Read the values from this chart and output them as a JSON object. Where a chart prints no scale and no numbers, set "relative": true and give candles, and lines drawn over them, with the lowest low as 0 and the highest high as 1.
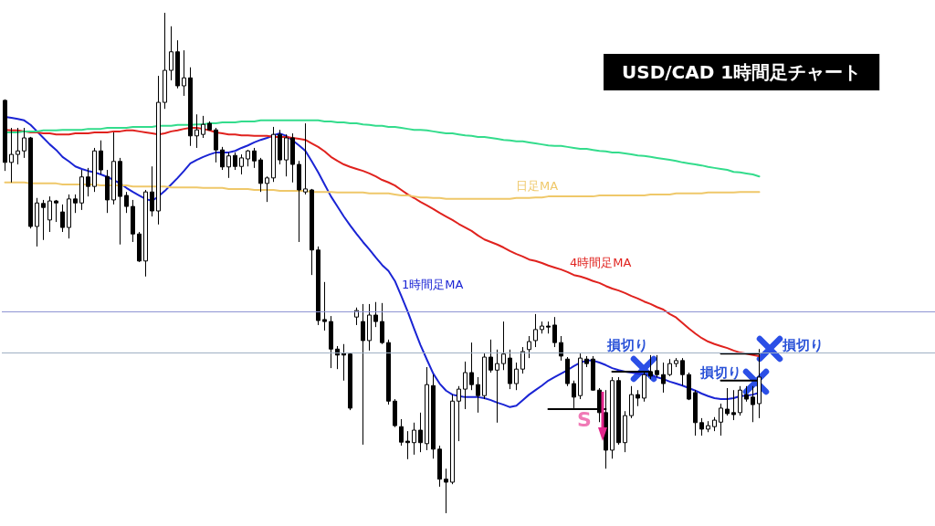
{
  "chart_data": {
    "type": "candlestick",
    "title": "USD/CAD 1時間足チャート",
    "relative": true,
    "categories": [
      null,
      null,
      null,
      null,
      null,
      null,
      null,
      null,
      null,
      null,
      null,
      null,
      null,
      null,
      null,
      null,
      null,
      null,
      null,
      null,
      null,
      null,
      null,
      null,
      null,
      null,
      null,
      null,
      null,
      null,
      null,
      null,
      null,
      null,
      null,
      null,
      null,
      null,
      null,
      null,
      null,
      null,
      null,
      null,
      null,
      null,
      null,
      null,
      null,
      null,
      null,
      null,
      null,
      null,
      null,
      null,
      null,
      null,
      null,
      null,
      null,
      null,
      null,
      null,
      null,
      null,
      null,
      null,
      null,
      null,
      null,
      null,
      null,
      null,
      null,
      null,
      null,
      null,
      null,
      null,
      null,
      null,
      null,
      null,
      null,
      null,
      null,
      null,
      null,
      null,
      null,
      null,
      null,
      null,
      null,
      null,
      null,
      null,
      null,
      null,
      null,
      null,
      null,
      null,
      null,
      null,
      null,
      null,
      null,
      null,
      null,
      null,
      null,
      null,
      null,
      null,
      null,
      null,
      null
    ],
    "ohlc": [
      [
        0.825,
        0.827,
        0.684,
        0.701
      ],
      [
        0.701,
        0.77,
        0.661,
        0.717
      ],
      [
        0.717,
        0.77,
        0.697,
        0.724
      ],
      [
        0.724,
        0.77,
        0.71,
        0.75
      ],
      [
        0.75,
        0.752,
        0.569,
        0.573
      ],
      [
        0.573,
        0.63,
        0.533,
        0.62
      ],
      [
        0.619,
        0.626,
        0.546,
        0.611
      ],
      [
        0.586,
        0.633,
        0.562,
        0.624
      ],
      [
        0.624,
        0.626,
        0.582,
        0.62
      ],
      [
        0.602,
        0.617,
        0.562,
        0.571
      ],
      [
        0.571,
        0.637,
        0.549,
        0.628
      ],
      [
        0.628,
        0.637,
        0.6,
        0.62
      ],
      [
        0.62,
        0.686,
        0.606,
        0.672
      ],
      [
        0.672,
        0.69,
        0.633,
        0.653
      ],
      [
        0.653,
        0.73,
        0.642,
        0.724
      ],
      [
        0.724,
        0.745,
        0.677,
        0.686
      ],
      [
        0.673,
        0.686,
        0.6,
        0.626
      ],
      [
        0.626,
        0.761,
        0.617,
        0.703
      ],
      [
        0.703,
        0.71,
        0.537,
        0.633
      ],
      [
        0.635,
        0.642,
        0.6,
        0.613
      ],
      [
        0.613,
        0.626,
        0.542,
        0.558
      ],
      [
        0.558,
        0.562,
        0.502,
        0.504
      ],
      [
        0.504,
        0.646,
        0.473,
        0.642
      ],
      [
        0.642,
        0.693,
        0.593,
        0.604
      ],
      [
        0.604,
        0.874,
        0.577,
        0.821
      ],
      [
        0.821,
        1,
        0.808,
        0.885
      ],
      [
        0.885,
        0.973,
        0.865,
        0.922
      ],
      [
        0.922,
        0.945,
        0.849,
        0.854
      ],
      [
        0.854,
        0.925,
        0.834,
        0.87
      ],
      [
        0.87,
        0.891,
        0.734,
        0.754
      ],
      [
        0.754,
        0.797,
        0.73,
        0.766
      ],
      [
        0.757,
        0.794,
        0.75,
        0.777
      ],
      [
        0.779,
        0.783,
        0.765,
        0.766
      ],
      [
        0.766,
        0.77,
        0.701,
        0.726
      ],
      [
        0.726,
        0.732,
        0.686,
        0.692
      ],
      [
        0.692,
        0.721,
        0.67,
        0.714
      ],
      [
        0.715,
        0.721,
        0.686,
        0.693
      ],
      [
        0.693,
        0.717,
        0.677,
        0.71
      ],
      [
        0.708,
        0.726,
        0.693,
        0.724
      ],
      [
        0.724,
        0.73,
        0.69,
        0.704
      ],
      [
        0.706,
        0.71,
        0.642,
        0.659
      ],
      [
        0.659,
        0.673,
        0.622,
        0.67
      ],
      [
        0.67,
        0.772,
        0.662,
        0.757
      ],
      [
        0.757,
        0.766,
        0.697,
        0.706
      ],
      [
        0.706,
        0.757,
        0.673,
        0.75
      ],
      [
        0.75,
        0.759,
        0.661,
        0.697
      ],
      [
        0.697,
        0.704,
        0.542,
        0.646
      ],
      [
        0.642,
        0.779,
        0.637,
        0.648
      ],
      [
        0.646,
        0.648,
        0.476,
        0.526
      ],
      [
        0.526,
        0.533,
        0.376,
        0.385
      ],
      [
        0.387,
        0.462,
        0.365,
        0.383
      ],
      [
        0.383,
        0.394,
        0.29,
        0.328
      ],
      [
        0.328,
        0.334,
        0.288,
        0.316
      ],
      [
        0.319,
        0.338,
        0.265,
        0.316
      ],
      [
        0.318,
        0.321,
        0.206,
        0.21
      ],
      [
        0.392,
        0.411,
        0.376,
        0.405
      ],
      [
        0.383,
        0.418,
        0.137,
        0.345
      ],
      [
        0.345,
        0.418,
        0.325,
        0.396
      ],
      [
        0.396,
        0.422,
        0.372,
        0.383
      ],
      [
        0.383,
        0.42,
        0.338,
        0.341
      ],
      [
        0.341,
        0.347,
        0.217,
        0.224
      ],
      [
        0.224,
        0.228,
        0.172,
        0.175
      ],
      [
        0.173,
        0.188,
        0.135,
        0.142
      ],
      [
        0.144,
        0.164,
        0.108,
        0.141
      ],
      [
        0.141,
        0.181,
        0.117,
        0.166
      ],
      [
        0.166,
        0.201,
        0.122,
        0.141
      ],
      [
        0.139,
        0.292,
        0.126,
        0.257
      ],
      [
        0.255,
        0.277,
        0.109,
        0.128
      ],
      [
        0.128,
        0.135,
        0.053,
        0.068
      ],
      [
        0.068,
        0.089,
        0,
        0.062
      ],
      [
        0.062,
        0.237,
        0.058,
        0.224
      ],
      [
        0.224,
        0.254,
        0.144,
        0.248
      ],
      [
        0.248,
        0.303,
        0.208,
        0.281
      ],
      [
        0.281,
        0.341,
        0.246,
        0.257
      ],
      [
        0.257,
        0.272,
        0.201,
        0.235
      ],
      [
        0.235,
        0.319,
        0.228,
        0.312
      ],
      [
        0.312,
        0.347,
        0.281,
        0.286
      ],
      [
        0.286,
        0.327,
        0.181,
        0.299
      ],
      [
        0.299,
        0.383,
        0.286,
        0.318
      ],
      [
        0.31,
        0.327,
        0.248,
        0.259
      ],
      [
        0.259,
        0.301,
        0.246,
        0.288
      ],
      [
        0.288,
        0.332,
        0.279,
        0.323
      ],
      [
        0.327,
        0.354,
        0.31,
        0.343
      ],
      [
        0.345,
        0.398,
        0.332,
        0.367
      ],
      [
        0.367,
        0.383,
        0.359,
        0.374
      ],
      [
        0.374,
        0.383,
        0.359,
        0.372
      ],
      [
        0.376,
        0.392,
        0.332,
        0.341
      ],
      [
        0.341,
        0.354,
        0.305,
        0.314
      ],
      [
        0.308,
        0.312,
        0.254,
        0.259
      ],
      [
        0.259,
        0.265,
        0.21,
        0.232
      ],
      [
        0.235,
        0.319,
        0.228,
        0.31
      ],
      [
        0.308,
        0.314,
        0.292,
        0.299
      ],
      [
        0.308,
        0.314,
        0.245,
        0.246
      ],
      [
        0.246,
        0.25,
        0.182,
        0.201
      ],
      [
        0.201,
        0.246,
        0.089,
        0.126
      ],
      [
        0.126,
        0.272,
        0.109,
        0.265
      ],
      [
        0.265,
        0.272,
        0.137,
        0.141
      ],
      [
        0.141,
        0.204,
        0.122,
        0.195
      ],
      [
        0.195,
        0.254,
        0.19,
        0.237
      ],
      [
        0.237,
        0.246,
        0.214,
        0.23
      ],
      [
        0.23,
        0.283,
        0.223,
        0.277
      ],
      [
        0.283,
        0.316,
        0.268,
        0.274
      ],
      [
        0.285,
        0.316,
        0.272,
        0.277
      ],
      [
        0.277,
        0.301,
        0.241,
        0.259
      ],
      [
        0.277,
        0.308,
        0.274,
        0.299
      ],
      [
        0.299,
        0.31,
        0.292,
        0.305
      ],
      [
        0.305,
        0.31,
        0.255,
        0.277
      ],
      [
        0.277,
        0.281,
        0.226,
        0.228
      ],
      [
        0.241,
        0.246,
        0.155,
        0.181
      ],
      [
        0.181,
        0.19,
        0.155,
        0.168
      ],
      [
        0.168,
        0.184,
        0.162,
        0.175
      ],
      [
        0.173,
        0.192,
        0.164,
        0.186
      ],
      [
        0.182,
        0.219,
        0.155,
        0.21
      ],
      [
        0.208,
        0.25,
        0.195,
        0.199
      ],
      [
        0.201,
        0.246,
        0.186,
        0.197
      ],
      [
        0.201,
        0.254,
        0.195,
        0.246
      ],
      [
        0.237,
        0.254,
        0.223,
        0.228
      ],
      [
        0.232,
        0.254,
        0.182,
        0.217
      ],
      [
        0.219,
        0.328,
        0.19,
        0.272
      ]
    ],
    "series": [
      {
        "type": "line",
        "name": "1時間足MA",
        "color": "#1a24d4",
        "values": [
          0.792,
          0.79,
          0.788,
          0.785,
          0.776,
          0.763,
          0.75,
          0.737,
          0.726,
          0.712,
          0.703,
          0.693,
          0.688,
          0.684,
          0.681,
          0.677,
          0.672,
          0.666,
          0.659,
          0.65,
          0.642,
          0.635,
          0.628,
          0.624,
          0.633,
          0.644,
          0.657,
          0.67,
          0.684,
          0.699,
          0.706,
          0.712,
          0.717,
          0.721,
          0.721,
          0.721,
          0.724,
          0.73,
          0.735,
          0.741,
          0.746,
          0.75,
          0.755,
          0.759,
          0.754,
          0.745,
          0.735,
          0.724,
          0.703,
          0.681,
          0.657,
          0.633,
          0.613,
          0.593,
          0.575,
          0.558,
          0.542,
          0.527,
          0.511,
          0.496,
          0.484,
          0.464,
          0.434,
          0.403,
          0.369,
          0.336,
          0.307,
          0.279,
          0.259,
          0.245,
          0.237,
          0.234,
          0.232,
          0.232,
          0.232,
          0.23,
          0.226,
          0.221,
          0.217,
          0.212,
          0.215,
          0.226,
          0.237,
          0.246,
          0.255,
          0.265,
          0.272,
          0.279,
          0.286,
          0.294,
          0.301,
          0.305,
          0.305,
          0.301,
          0.296,
          0.29,
          0.286,
          0.283,
          0.281,
          0.279,
          0.277,
          0.276,
          0.272,
          0.268,
          0.263,
          0.259,
          0.255,
          0.25,
          0.245,
          0.239,
          0.234,
          0.23,
          0.228,
          0.228,
          0.23,
          0.234,
          0.235,
          0.237,
          0.241
        ]
      },
      {
        "type": "line",
        "name": "4時間足MA",
        "color": "#e0221e",
        "values": [
          0.766,
          0.765,
          0.765,
          0.763,
          0.761,
          0.761,
          0.759,
          0.759,
          0.757,
          0.757,
          0.757,
          0.759,
          0.759,
          0.759,
          0.761,
          0.761,
          0.761,
          0.763,
          0.763,
          0.765,
          0.765,
          0.763,
          0.761,
          0.759,
          0.757,
          0.759,
          0.763,
          0.765,
          0.768,
          0.77,
          0.77,
          0.768,
          0.765,
          0.761,
          0.759,
          0.757,
          0.757,
          0.755,
          0.755,
          0.754,
          0.754,
          0.754,
          0.752,
          0.752,
          0.752,
          0.75,
          0.748,
          0.746,
          0.739,
          0.732,
          0.723,
          0.712,
          0.704,
          0.697,
          0.692,
          0.688,
          0.684,
          0.679,
          0.673,
          0.666,
          0.661,
          0.655,
          0.646,
          0.637,
          0.63,
          0.622,
          0.615,
          0.608,
          0.6,
          0.593,
          0.586,
          0.578,
          0.571,
          0.564,
          0.555,
          0.547,
          0.542,
          0.537,
          0.531,
          0.524,
          0.518,
          0.513,
          0.507,
          0.504,
          0.5,
          0.495,
          0.491,
          0.487,
          0.482,
          0.476,
          0.473,
          0.469,
          0.464,
          0.46,
          0.454,
          0.449,
          0.445,
          0.44,
          0.434,
          0.429,
          0.423,
          0.418,
          0.412,
          0.407,
          0.398,
          0.391,
          0.38,
          0.369,
          0.359,
          0.35,
          0.343,
          0.338,
          0.334,
          0.33,
          0.325,
          0.321,
          0.319,
          0.316,
          0.314
        ]
      },
      {
        "type": "line",
        "color": "#33dc8c",
        "values": [
          0.761,
          0.761,
          0.761,
          0.763,
          0.763,
          0.763,
          0.765,
          0.765,
          0.765,
          0.766,
          0.766,
          0.766,
          0.766,
          0.768,
          0.768,
          0.768,
          0.77,
          0.77,
          0.77,
          0.77,
          0.772,
          0.772,
          0.772,
          0.772,
          0.774,
          0.774,
          0.774,
          0.776,
          0.776,
          0.776,
          0.777,
          0.777,
          0.779,
          0.779,
          0.781,
          0.781,
          0.781,
          0.783,
          0.783,
          0.783,
          0.785,
          0.785,
          0.785,
          0.785,
          0.785,
          0.785,
          0.785,
          0.785,
          0.785,
          0.785,
          0.783,
          0.783,
          0.781,
          0.781,
          0.779,
          0.779,
          0.777,
          0.776,
          0.774,
          0.774,
          0.772,
          0.772,
          0.77,
          0.768,
          0.766,
          0.766,
          0.765,
          0.763,
          0.761,
          0.759,
          0.759,
          0.757,
          0.755,
          0.754,
          0.752,
          0.752,
          0.75,
          0.748,
          0.746,
          0.745,
          0.743,
          0.743,
          0.741,
          0.739,
          0.737,
          0.735,
          0.734,
          0.734,
          0.732,
          0.73,
          0.728,
          0.728,
          0.726,
          0.724,
          0.723,
          0.721,
          0.721,
          0.719,
          0.717,
          0.715,
          0.714,
          0.712,
          0.71,
          0.708,
          0.706,
          0.704,
          0.701,
          0.699,
          0.697,
          0.695,
          0.692,
          0.69,
          0.688,
          0.686,
          0.682,
          0.681,
          0.679,
          0.677,
          0.673
        ]
      },
      {
        "type": "line",
        "name": "日足MA",
        "color": "#efc86a",
        "values": [
          0.661,
          0.661,
          0.661,
          0.661,
          0.659,
          0.659,
          0.659,
          0.659,
          0.659,
          0.657,
          0.657,
          0.657,
          0.657,
          0.657,
          0.657,
          0.655,
          0.655,
          0.655,
          0.655,
          0.655,
          0.653,
          0.653,
          0.653,
          0.653,
          0.653,
          0.653,
          0.651,
          0.651,
          0.651,
          0.651,
          0.651,
          0.65,
          0.65,
          0.65,
          0.65,
          0.648,
          0.648,
          0.648,
          0.648,
          0.646,
          0.646,
          0.646,
          0.646,
          0.644,
          0.644,
          0.644,
          0.644,
          0.644,
          0.642,
          0.642,
          0.642,
          0.642,
          0.641,
          0.641,
          0.641,
          0.641,
          0.641,
          0.639,
          0.639,
          0.639,
          0.639,
          0.637,
          0.635,
          0.635,
          0.633,
          0.631,
          0.631,
          0.63,
          0.63,
          0.628,
          0.628,
          0.628,
          0.628,
          0.628,
          0.628,
          0.628,
          0.628,
          0.628,
          0.628,
          0.628,
          0.63,
          0.63,
          0.63,
          0.631,
          0.631,
          0.633,
          0.633,
          0.633,
          0.633,
          0.633,
          0.633,
          0.633,
          0.633,
          0.635,
          0.635,
          0.635,
          0.635,
          0.635,
          0.635,
          0.635,
          0.635,
          0.637,
          0.637,
          0.637,
          0.637,
          0.639,
          0.639,
          0.639,
          0.639,
          0.639,
          0.641,
          0.641,
          0.641,
          0.641,
          0.641,
          0.642,
          0.642,
          0.642,
          0.642
        ]
      },
      {
        "type": "line",
        "color": "#000000",
        "values": [
          null,
          null,
          null,
          null,
          null,
          null,
          null,
          null,
          null,
          null,
          null,
          null,
          null,
          null,
          null,
          null,
          null,
          null,
          null,
          null,
          null,
          null,
          null,
          null,
          null,
          null,
          null,
          null,
          null,
          null,
          null,
          null,
          null,
          null,
          null,
          null,
          null,
          null,
          null,
          null,
          null,
          null,
          null,
          null,
          null,
          null,
          null,
          null,
          null,
          null,
          null,
          null,
          null,
          null,
          null,
          null,
          null,
          null,
          null,
          null,
          null,
          null,
          null,
          null,
          null,
          null,
          null,
          null,
          null,
          null,
          null,
          null,
          null,
          null,
          null,
          null,
          null,
          null,
          null,
          null,
          null,
          null,
          null,
          null,
          null,
          0.208,
          0.208,
          0.208,
          0.208,
          0.208,
          0.208,
          0.208,
          0.208,
          0.208,
          0.208,
          null,
          null,
          null,
          null,
          null,
          null,
          null,
          null,
          null,
          null,
          null,
          null,
          null,
          null,
          null,
          null,
          null,
          null,
          null,
          null,
          null,
          null,
          null,
          null
        ]
      },
      {
        "type": "line",
        "color": "#000000",
        "values": [
          null,
          null,
          null,
          null,
          null,
          null,
          null,
          null,
          null,
          null,
          null,
          null,
          null,
          null,
          null,
          null,
          null,
          null,
          null,
          null,
          null,
          null,
          null,
          null,
          null,
          null,
          null,
          null,
          null,
          null,
          null,
          null,
          null,
          null,
          null,
          null,
          null,
          null,
          null,
          null,
          null,
          null,
          null,
          null,
          null,
          null,
          null,
          null,
          null,
          null,
          null,
          null,
          null,
          null,
          null,
          null,
          null,
          null,
          null,
          null,
          null,
          null,
          null,
          null,
          null,
          null,
          null,
          null,
          null,
          null,
          null,
          null,
          null,
          null,
          null,
          null,
          null,
          null,
          null,
          null,
          null,
          null,
          null,
          null,
          null,
          null,
          null,
          null,
          null,
          null,
          null,
          null,
          null,
          null,
          null,
          0.283,
          0.283,
          0.283,
          0.283,
          0.283,
          0.283,
          0.283,
          null,
          null,
          null,
          null,
          null,
          null,
          null,
          null,
          null,
          null,
          null,
          null,
          null,
          null,
          null,
          null,
          null
        ]
      },
      {
        "type": "line",
        "color": "#000000",
        "values": [
          null,
          null,
          null,
          null,
          null,
          null,
          null,
          null,
          null,
          null,
          null,
          null,
          null,
          null,
          null,
          null,
          null,
          null,
          null,
          null,
          null,
          null,
          null,
          null,
          null,
          null,
          null,
          null,
          null,
          null,
          null,
          null,
          null,
          null,
          null,
          null,
          null,
          null,
          null,
          null,
          null,
          null,
          null,
          null,
          null,
          null,
          null,
          null,
          null,
          null,
          null,
          null,
          null,
          null,
          null,
          null,
          null,
          null,
          null,
          null,
          null,
          null,
          null,
          null,
          null,
          null,
          null,
          null,
          null,
          null,
          null,
          null,
          null,
          null,
          null,
          null,
          null,
          null,
          null,
          null,
          null,
          null,
          null,
          null,
          null,
          null,
          null,
          null,
          null,
          null,
          null,
          null,
          null,
          null,
          null,
          null,
          null,
          null,
          null,
          null,
          null,
          null,
          null,
          null,
          null,
          null,
          null,
          null,
          null,
          null,
          null,
          null,
          0.319,
          0.319,
          0.319,
          0.319,
          0.319,
          0.319,
          0.319
        ]
      },
      {
        "type": "line",
        "color": "#000000",
        "values": [
          null,
          null,
          null,
          null,
          null,
          null,
          null,
          null,
          null,
          null,
          null,
          null,
          null,
          null,
          null,
          null,
          null,
          null,
          null,
          null,
          null,
          null,
          null,
          null,
          null,
          null,
          null,
          null,
          null,
          null,
          null,
          null,
          null,
          null,
          null,
          null,
          null,
          null,
          null,
          null,
          null,
          null,
          null,
          null,
          null,
          null,
          null,
          null,
          null,
          null,
          null,
          null,
          null,
          null,
          null,
          null,
          null,
          null,
          null,
          null,
          null,
          null,
          null,
          null,
          null,
          null,
          null,
          null,
          null,
          null,
          null,
          null,
          null,
          null,
          null,
          null,
          null,
          null,
          null,
          null,
          null,
          null,
          null,
          null,
          null,
          null,
          null,
          null,
          null,
          null,
          null,
          null,
          null,
          null,
          null,
          null,
          null,
          null,
          null,
          null,
          null,
          null,
          null,
          null,
          null,
          null,
          null,
          null,
          null,
          null,
          null,
          null,
          0.265,
          0.265,
          0.265,
          0.265,
          0.265,
          0.265,
          0.265
        ]
      }
    ],
    "ref_lines": [
      {
        "axis": "y",
        "value": 0.403,
        "color": "#8e95d3"
      },
      {
        "axis": "y",
        "value": 0.321,
        "color": "#9fb0c4"
      }
    ],
    "annotations": [
      "損切り",
      "損切り",
      "損切り",
      "S"
    ]
  }
}
